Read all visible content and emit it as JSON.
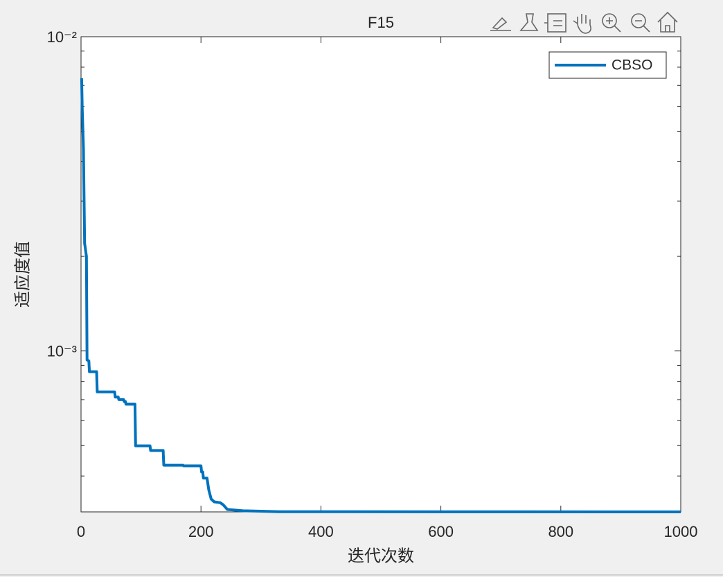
{
  "chart_data": {
    "type": "line",
    "title": "F15",
    "x_label": "迭代次数",
    "y_label": "适应度值",
    "series": [
      {
        "name": "CBSO",
        "color": "#0072BD",
        "x": [
          1,
          2,
          4,
          6,
          9,
          10,
          13,
          14,
          26,
          27,
          56,
          57,
          62,
          63,
          71,
          72,
          74,
          75,
          90,
          91,
          115,
          116,
          137,
          138,
          170,
          171,
          200,
          201,
          203,
          204,
          210,
          213,
          217,
          222,
          232,
          237,
          244,
          270,
          330,
          1000
        ],
        "values": [
          0.00738,
          0.00596,
          0.0044,
          0.0022,
          0.002,
          0.000936,
          0.00093,
          0.000859,
          0.000859,
          0.000741,
          0.000741,
          0.000713,
          0.000713,
          0.0007,
          0.0007,
          0.00069,
          0.00069,
          0.000677,
          0.000677,
          0.000499,
          0.000499,
          0.000482,
          0.000482,
          0.000433,
          0.000433,
          0.000431,
          0.000431,
          0.000412,
          0.000412,
          0.000394,
          0.000394,
          0.000361,
          0.000338,
          0.000331,
          0.000329,
          0.000324,
          0.000313,
          0.00031,
          0.000308,
          0.0003075
        ]
      }
    ],
    "xlim": [
      0,
      1000
    ],
    "xticks": [
      0,
      200,
      400,
      600,
      800,
      1000
    ],
    "ylim": [
      0.0003075,
      0.01
    ],
    "log_y": true,
    "yticks": [
      {
        "value": 0.001,
        "label": "10⁻³"
      },
      {
        "value": 0.01,
        "label": "10⁻²"
      }
    ],
    "yminorticks": [
      0.0004,
      0.0005,
      0.0006,
      0.0007,
      0.0008,
      0.0009,
      0.002,
      0.003,
      0.004,
      0.005,
      0.006,
      0.007,
      0.008,
      0.009
    ],
    "legend": "top-right",
    "grid": false
  }
}
